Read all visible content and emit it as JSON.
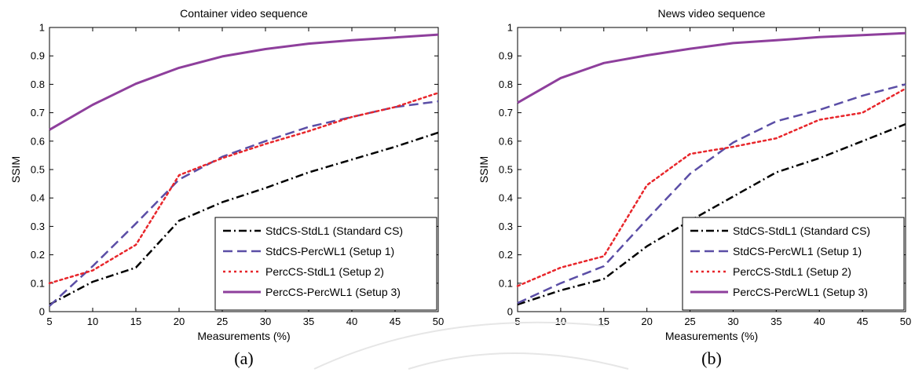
{
  "chart_data": [
    {
      "type": "line",
      "title": "Container video sequence",
      "xlabel": "Measurements (%)",
      "ylabel": "SSIM",
      "caption": "(a)",
      "xlim": [
        5,
        50
      ],
      "ylim": [
        0,
        1
      ],
      "xticks": [
        "5",
        "10",
        "15",
        "20",
        "25",
        "30",
        "35",
        "40",
        "45",
        "50"
      ],
      "yticks": [
        "0",
        "0.1",
        "0.2",
        "0.3",
        "0.4",
        "0.5",
        "0.6",
        "0.7",
        "0.8",
        "0.9",
        "1"
      ],
      "grid": false,
      "legend_position": "bottom-right",
      "x": [
        5,
        10,
        15,
        20,
        25,
        30,
        35,
        40,
        45,
        50
      ],
      "series": [
        {
          "name": "StdCS-StdL1 (Standard CS)",
          "color": "#000000",
          "style": "dashdot",
          "values": [
            0.025,
            0.105,
            0.155,
            0.32,
            0.385,
            0.435,
            0.49,
            0.535,
            0.58,
            0.63
          ]
        },
        {
          "name": "StdCS-PercWL1 (Setup 1)",
          "color": "#5b4ea6",
          "style": "dashed",
          "values": [
            0.02,
            0.16,
            0.31,
            0.465,
            0.545,
            0.6,
            0.65,
            0.685,
            0.72,
            0.74
          ]
        },
        {
          "name": "PercCS-StdL1 (Setup 2)",
          "color": "#e8262b",
          "style": "dotted",
          "values": [
            0.1,
            0.145,
            0.235,
            0.48,
            0.54,
            0.59,
            0.635,
            0.685,
            0.72,
            0.77
          ]
        },
        {
          "name": "PercCS-PercWL1 (Setup 3)",
          "color": "#8e3f9c",
          "style": "solid",
          "values": [
            0.64,
            0.728,
            0.802,
            0.858,
            0.898,
            0.924,
            0.943,
            0.955,
            0.965,
            0.975
          ]
        }
      ]
    },
    {
      "type": "line",
      "title": "News video sequence",
      "xlabel": "Measurements (%)",
      "ylabel": "SSIM",
      "caption": "(b)",
      "xlim": [
        5,
        50
      ],
      "ylim": [
        0,
        1
      ],
      "xticks": [
        "5",
        "10",
        "15",
        "20",
        "25",
        "30",
        "35",
        "40",
        "45",
        "50"
      ],
      "yticks": [
        "0",
        "0.1",
        "0.2",
        "0.3",
        "0.4",
        "0.5",
        "0.6",
        "0.7",
        "0.8",
        "0.9",
        "1"
      ],
      "grid": false,
      "legend_position": "bottom-right",
      "x": [
        5,
        10,
        15,
        20,
        25,
        30,
        35,
        40,
        45,
        50
      ],
      "series": [
        {
          "name": "StdCS-StdL1 (Standard CS)",
          "color": "#000000",
          "style": "dashdot",
          "values": [
            0.025,
            0.075,
            0.115,
            0.23,
            0.32,
            0.405,
            0.49,
            0.54,
            0.6,
            0.66
          ]
        },
        {
          "name": "StdCS-PercWL1 (Setup 1)",
          "color": "#5b4ea6",
          "style": "dashed",
          "values": [
            0.03,
            0.1,
            0.16,
            0.325,
            0.485,
            0.595,
            0.67,
            0.71,
            0.76,
            0.8
          ]
        },
        {
          "name": "PercCS-StdL1 (Setup 2)",
          "color": "#e8262b",
          "style": "dotted",
          "values": [
            0.09,
            0.155,
            0.195,
            0.445,
            0.555,
            0.58,
            0.61,
            0.675,
            0.7,
            0.785
          ]
        },
        {
          "name": "PercCS-PercWL1 (Setup 3)",
          "color": "#8e3f9c",
          "style": "solid",
          "values": [
            0.735,
            0.822,
            0.875,
            0.902,
            0.925,
            0.945,
            0.955,
            0.966,
            0.973,
            0.98
          ]
        }
      ]
    }
  ]
}
